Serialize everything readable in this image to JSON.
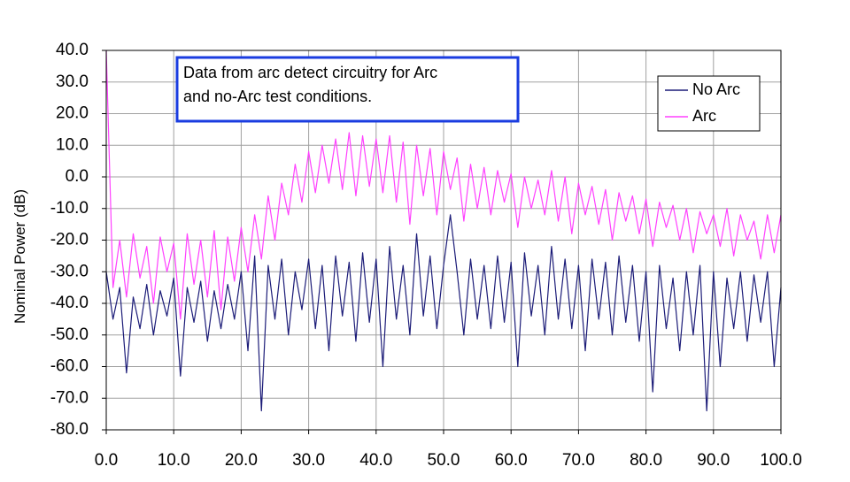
{
  "chart_data": {
    "type": "line",
    "y_label": "Nominal Power (dB)",
    "annotation": [
      "Data from arc detect circuitry for Arc",
      "and no-Arc test conditions."
    ],
    "xlim": [
      0,
      100
    ],
    "ylim": [
      -80,
      40
    ],
    "xticks": [
      {
        "value": 0,
        "label": "0.0"
      },
      {
        "value": 10,
        "label": "10.0"
      },
      {
        "value": 20,
        "label": "20.0"
      },
      {
        "value": 30,
        "label": "30.0"
      },
      {
        "value": 40,
        "label": "40.0"
      },
      {
        "value": 50,
        "label": "50.0"
      },
      {
        "value": 60,
        "label": "60.0"
      },
      {
        "value": 70,
        "label": "70.0"
      },
      {
        "value": 80,
        "label": "80.0"
      },
      {
        "value": 90,
        "label": "90.0"
      },
      {
        "value": 100,
        "label": "100.0"
      }
    ],
    "yticks": [
      {
        "value": 40,
        "label": "40.0"
      },
      {
        "value": 30,
        "label": "30.0"
      },
      {
        "value": 20,
        "label": "20.0"
      },
      {
        "value": 10,
        "label": "10.0"
      },
      {
        "value": 0,
        "label": "0.0"
      },
      {
        "value": -10,
        "label": "-10.0"
      },
      {
        "value": -20,
        "label": "-20.0"
      },
      {
        "value": -30,
        "label": "-30.0"
      },
      {
        "value": -40,
        "label": "-40.0"
      },
      {
        "value": -50,
        "label": "-50.0"
      },
      {
        "value": -60,
        "label": "-60.0"
      },
      {
        "value": -70,
        "label": "-70.0"
      },
      {
        "value": -80,
        "label": "-80.0"
      }
    ],
    "grid": true,
    "legend": "upper right",
    "x": [
      0,
      1,
      2,
      3,
      4,
      5,
      6,
      7,
      8,
      9,
      10,
      11,
      12,
      13,
      14,
      15,
      16,
      17,
      18,
      19,
      20,
      21,
      22,
      23,
      24,
      25,
      26,
      27,
      28,
      29,
      30,
      31,
      32,
      33,
      34,
      35,
      36,
      37,
      38,
      39,
      40,
      41,
      42,
      43,
      44,
      45,
      46,
      47,
      48,
      49,
      50,
      51,
      52,
      53,
      54,
      55,
      56,
      57,
      58,
      59,
      60,
      61,
      62,
      63,
      64,
      65,
      66,
      67,
      68,
      69,
      70,
      71,
      72,
      73,
      74,
      75,
      76,
      77,
      78,
      79,
      80,
      81,
      82,
      83,
      84,
      85,
      86,
      87,
      88,
      89,
      90,
      91,
      92,
      93,
      94,
      95,
      96,
      97,
      98,
      99,
      100
    ],
    "series": [
      {
        "name": "No Arc",
        "color": "#1c1c78",
        "values": [
          -30,
          -45,
          -35,
          -62,
          -38,
          -48,
          -34,
          -50,
          -36,
          -44,
          -32,
          -63,
          -35,
          -46,
          -33,
          -52,
          -36,
          -48,
          -34,
          -45,
          -30,
          -55,
          -25,
          -74,
          -28,
          -45,
          -26,
          -50,
          -30,
          -42,
          -26,
          -48,
          -28,
          -55,
          -25,
          -44,
          -27,
          -52,
          -24,
          -46,
          -26,
          -60,
          -22,
          -45,
          -28,
          -50,
          -18,
          -44,
          -25,
          -48,
          -28,
          -12,
          -30,
          -50,
          -26,
          -45,
          -28,
          -48,
          -25,
          -46,
          -27,
          -60,
          -24,
          -44,
          -28,
          -50,
          -22,
          -45,
          -26,
          -48,
          -28,
          -55,
          -26,
          -45,
          -27,
          -50,
          -25,
          -46,
          -28,
          -52,
          -30,
          -68,
          -28,
          -48,
          -32,
          -55,
          -30,
          -50,
          -28,
          -74,
          -30,
          -60,
          -32,
          -48,
          -30,
          -52,
          -31,
          -46,
          -30,
          -60,
          -35
        ]
      },
      {
        "name": "Arc",
        "color": "#ff40ff",
        "values": [
          40,
          -35,
          -20,
          -38,
          -18,
          -32,
          -22,
          -40,
          -19,
          -30,
          -21,
          -45,
          -18,
          -34,
          -20,
          -38,
          -17,
          -42,
          -19,
          -33,
          -16,
          -30,
          -12,
          -26,
          -6,
          -20,
          -2,
          -12,
          4,
          -8,
          8,
          -5,
          10,
          -2,
          12,
          -4,
          14,
          -6,
          13,
          -3,
          12,
          -5,
          13,
          -8,
          11,
          -15,
          10,
          -6,
          9,
          -12,
          8,
          -4,
          6,
          -14,
          4,
          -10,
          3,
          -12,
          2,
          -8,
          1,
          -16,
          0,
          -10,
          -1,
          -12,
          2,
          -14,
          0,
          -18,
          -2,
          -12,
          -3,
          -15,
          -4,
          -20,
          -5,
          -14,
          -6,
          -18,
          -7,
          -22,
          -8,
          -16,
          -9,
          -20,
          -10,
          -24,
          -11,
          -18,
          -12,
          -22,
          -10,
          -25,
          -12,
          -20,
          -14,
          -26,
          -12,
          -24,
          -12
        ]
      }
    ]
  }
}
